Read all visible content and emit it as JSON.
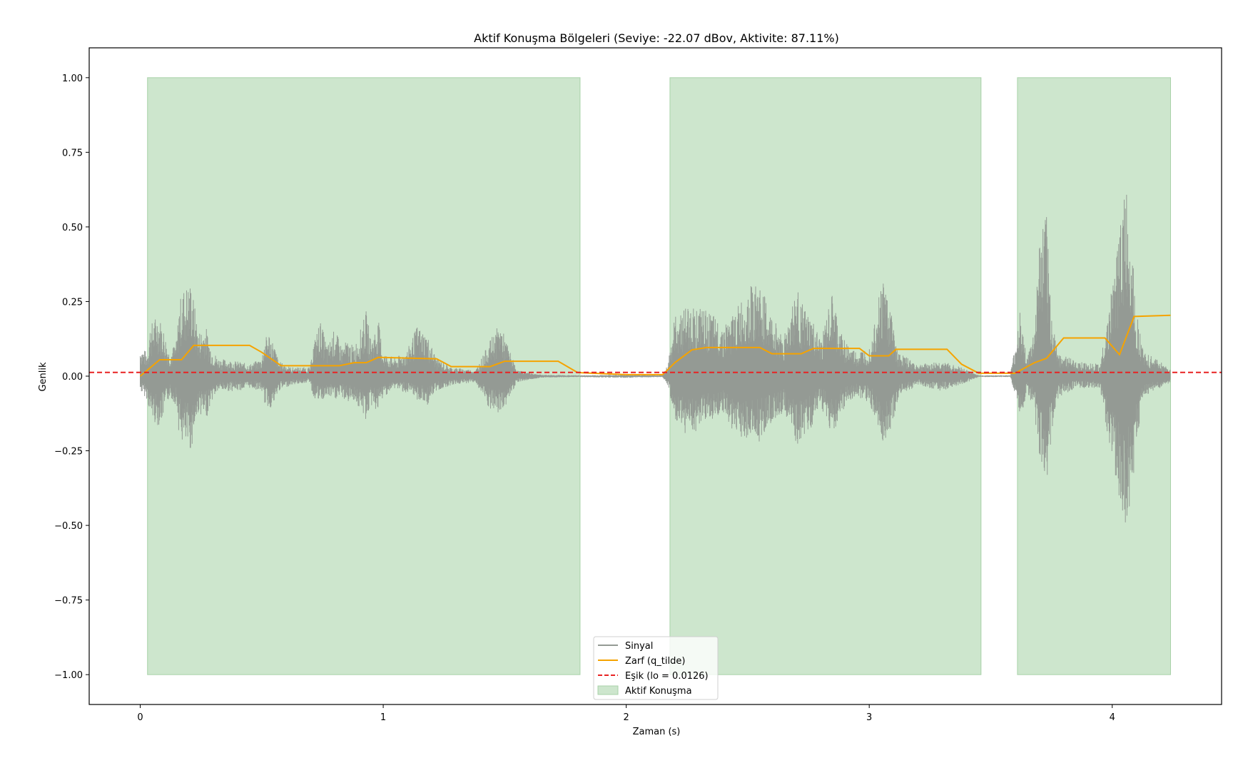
{
  "chart_data": {
    "type": "line",
    "title": "Aktif Konuşma Bölgeleri (Seviye: -22.07 dBov, Aktivite: 87.11%)",
    "xlabel": "Zaman (s)",
    "ylabel": "Genlik",
    "xlim": [
      -0.21,
      4.45
    ],
    "ylim": [
      -1.1,
      1.1
    ],
    "xticks": [
      0,
      1,
      2,
      3,
      4
    ],
    "xtick_labels": [
      "0",
      "1",
      "2",
      "3",
      "4"
    ],
    "yticks": [
      -1.0,
      -0.75,
      -0.5,
      -0.25,
      0.0,
      0.25,
      0.5,
      0.75,
      1.0
    ],
    "ytick_labels": [
      "−1.00",
      "−0.75",
      "−0.50",
      "−0.25",
      "0.00",
      "0.25",
      "0.50",
      "0.75",
      "1.00"
    ],
    "grid": false,
    "legend_position": "lower-center",
    "active_regions": {
      "name": "Aktif Konuşma",
      "color": "#cde6cd",
      "y_range": [
        -1.0,
        1.0
      ],
      "spans": [
        [
          0.03,
          1.81
        ],
        [
          2.18,
          3.46
        ],
        [
          3.61,
          4.24
        ]
      ]
    },
    "threshold": {
      "name": "Eşik (lo = 0.0126)",
      "value": 0.0126,
      "color": "#e82222"
    },
    "signal": {
      "name": "Sinyal",
      "color": "#949a94",
      "envelope_keypoints": [
        [
          0.0,
          0.1,
          -0.05
        ],
        [
          0.03,
          0.08,
          -0.08
        ],
        [
          0.04,
          0.17,
          -0.13
        ],
        [
          0.07,
          0.21,
          -0.17
        ],
        [
          0.09,
          0.18,
          -0.15
        ],
        [
          0.12,
          0.08,
          -0.07
        ],
        [
          0.15,
          0.12,
          -0.1
        ],
        [
          0.16,
          0.25,
          -0.2
        ],
        [
          0.18,
          0.3,
          -0.24
        ],
        [
          0.21,
          0.32,
          -0.25
        ],
        [
          0.22,
          0.26,
          -0.2
        ],
        [
          0.24,
          0.15,
          -0.12
        ],
        [
          0.27,
          0.17,
          -0.15
        ],
        [
          0.29,
          0.1,
          -0.09
        ],
        [
          0.32,
          0.06,
          -0.05
        ],
        [
          0.4,
          0.05,
          -0.05
        ],
        [
          0.45,
          0.04,
          -0.04
        ],
        [
          0.5,
          0.06,
          -0.05
        ],
        [
          0.51,
          0.12,
          -0.09
        ],
        [
          0.53,
          0.15,
          -0.11
        ],
        [
          0.55,
          0.11,
          -0.1
        ],
        [
          0.57,
          0.05,
          -0.05
        ],
        [
          0.62,
          0.03,
          -0.03
        ],
        [
          0.7,
          0.03,
          -0.02
        ],
        [
          0.71,
          0.1,
          -0.07
        ],
        [
          0.74,
          0.19,
          -0.09
        ],
        [
          0.77,
          0.1,
          -0.07
        ],
        [
          0.8,
          0.16,
          -0.08
        ],
        [
          0.83,
          0.1,
          -0.07
        ],
        [
          0.85,
          0.12,
          -0.09
        ],
        [
          0.88,
          0.1,
          -0.08
        ],
        [
          0.9,
          0.14,
          -0.11
        ],
        [
          0.93,
          0.22,
          -0.15
        ],
        [
          0.95,
          0.12,
          -0.1
        ],
        [
          0.98,
          0.19,
          -0.12
        ],
        [
          1.0,
          0.08,
          -0.07
        ],
        [
          1.05,
          0.06,
          -0.04
        ],
        [
          1.1,
          0.09,
          -0.06
        ],
        [
          1.14,
          0.17,
          -0.08
        ],
        [
          1.18,
          0.14,
          -0.1
        ],
        [
          1.22,
          0.06,
          -0.05
        ],
        [
          1.28,
          0.03,
          -0.03
        ],
        [
          1.38,
          0.02,
          -0.02
        ],
        [
          1.44,
          0.12,
          -0.12
        ],
        [
          1.48,
          0.18,
          -0.13
        ],
        [
          1.51,
          0.11,
          -0.09
        ],
        [
          1.55,
          0.02,
          -0.02
        ],
        [
          1.65,
          0.005,
          -0.005
        ],
        [
          1.8,
          0.003,
          -0.003
        ],
        [
          2.0,
          0.005,
          -0.006
        ],
        [
          2.15,
          0.003,
          -0.003
        ],
        [
          2.17,
          0.04,
          -0.03
        ],
        [
          2.2,
          0.2,
          -0.15
        ],
        [
          2.25,
          0.24,
          -0.2
        ],
        [
          2.3,
          0.23,
          -0.18
        ],
        [
          2.35,
          0.21,
          -0.15
        ],
        [
          2.4,
          0.17,
          -0.13
        ],
        [
          2.45,
          0.22,
          -0.2
        ],
        [
          2.5,
          0.3,
          -0.21
        ],
        [
          2.55,
          0.31,
          -0.22
        ],
        [
          2.6,
          0.2,
          -0.15
        ],
        [
          2.65,
          0.14,
          -0.12
        ],
        [
          2.7,
          0.3,
          -0.25
        ],
        [
          2.73,
          0.23,
          -0.2
        ],
        [
          2.77,
          0.18,
          -0.17
        ],
        [
          2.8,
          0.12,
          -0.1
        ],
        [
          2.85,
          0.28,
          -0.2
        ],
        [
          2.88,
          0.15,
          -0.13
        ],
        [
          2.92,
          0.1,
          -0.08
        ],
        [
          2.95,
          0.08,
          -0.07
        ],
        [
          3.0,
          0.1,
          -0.09
        ],
        [
          3.03,
          0.24,
          -0.15
        ],
        [
          3.06,
          0.35,
          -0.24
        ],
        [
          3.09,
          0.22,
          -0.19
        ],
        [
          3.12,
          0.08,
          -0.07
        ],
        [
          3.2,
          0.04,
          -0.03
        ],
        [
          3.3,
          0.05,
          -0.05
        ],
        [
          3.38,
          0.03,
          -0.03
        ],
        [
          3.45,
          0.003,
          -0.003
        ],
        [
          3.58,
          0.003,
          -0.003
        ],
        [
          3.6,
          0.1,
          -0.06
        ],
        [
          3.62,
          0.22,
          -0.15
        ],
        [
          3.65,
          0.06,
          -0.05
        ],
        [
          3.68,
          0.16,
          -0.12
        ],
        [
          3.7,
          0.45,
          -0.28
        ],
        [
          3.73,
          0.55,
          -0.38
        ],
        [
          3.75,
          0.2,
          -0.2
        ],
        [
          3.78,
          0.08,
          -0.07
        ],
        [
          3.85,
          0.05,
          -0.04
        ],
        [
          3.95,
          0.04,
          -0.04
        ],
        [
          4.0,
          0.3,
          -0.3
        ],
        [
          4.03,
          0.5,
          -0.43
        ],
        [
          4.05,
          0.66,
          -0.53
        ],
        [
          4.08,
          0.5,
          -0.4
        ],
        [
          4.1,
          0.22,
          -0.22
        ],
        [
          4.13,
          0.08,
          -0.07
        ],
        [
          4.2,
          0.05,
          -0.04
        ],
        [
          4.24,
          0.02,
          -0.02
        ]
      ]
    },
    "envelope": {
      "name": "Zarf (q_tilde)",
      "color": "#f5a300",
      "x": [
        0.0,
        0.08,
        0.17,
        0.22,
        0.45,
        0.5,
        0.58,
        0.82,
        0.88,
        0.93,
        0.98,
        1.22,
        1.28,
        1.44,
        1.5,
        1.72,
        1.8,
        2.0,
        2.15,
        2.2,
        2.27,
        2.33,
        2.55,
        2.6,
        2.72,
        2.77,
        2.96,
        3.0,
        3.08,
        3.11,
        3.32,
        3.38,
        3.45,
        3.6,
        3.68,
        3.73,
        3.8,
        3.97,
        4.03,
        4.09,
        4.24
      ],
      "y": [
        0.0,
        0.055,
        0.055,
        0.103,
        0.103,
        0.08,
        0.035,
        0.035,
        0.045,
        0.045,
        0.063,
        0.058,
        0.032,
        0.032,
        0.05,
        0.05,
        0.012,
        0.005,
        0.005,
        0.045,
        0.088,
        0.096,
        0.096,
        0.075,
        0.075,
        0.093,
        0.093,
        0.068,
        0.068,
        0.09,
        0.09,
        0.04,
        0.01,
        0.01,
        0.045,
        0.06,
        0.128,
        0.128,
        0.072,
        0.2,
        0.204
      ]
    }
  }
}
